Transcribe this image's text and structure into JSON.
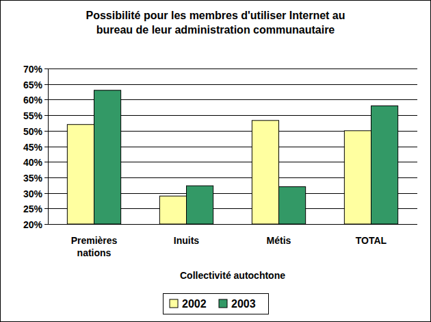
{
  "chart_data": {
    "type": "bar",
    "title": "Possibilité pour les membres d'utiliser Internet au bureau de leur administration communautaire",
    "x_label": "Collectivité autochtone",
    "categories": [
      "Premières nations",
      "Inuits",
      "Métis",
      "TOTAL"
    ],
    "series": [
      {
        "name": "2002",
        "color": "#ffffa0",
        "values": [
          52,
          29,
          53.3,
          50
        ]
      },
      {
        "name": "2003",
        "color": "#339966",
        "values": [
          63,
          32.3,
          32,
          58
        ]
      }
    ],
    "ylim": [
      20,
      70
    ],
    "yticks": [
      {
        "value": 20,
        "label": "20%"
      },
      {
        "value": 25,
        "label": "25%"
      },
      {
        "value": 30,
        "label": "30%"
      },
      {
        "value": 35,
        "label": "35%"
      },
      {
        "value": 40,
        "label": "40%"
      },
      {
        "value": 45,
        "label": "45%"
      },
      {
        "value": 50,
        "label": "50%"
      },
      {
        "value": 55,
        "label": "55%"
      },
      {
        "value": 60,
        "label": "60%"
      },
      {
        "value": 65,
        "label": "65%"
      },
      {
        "value": 70,
        "label": "70%"
      }
    ],
    "grid": true,
    "legend": "bottom"
  }
}
